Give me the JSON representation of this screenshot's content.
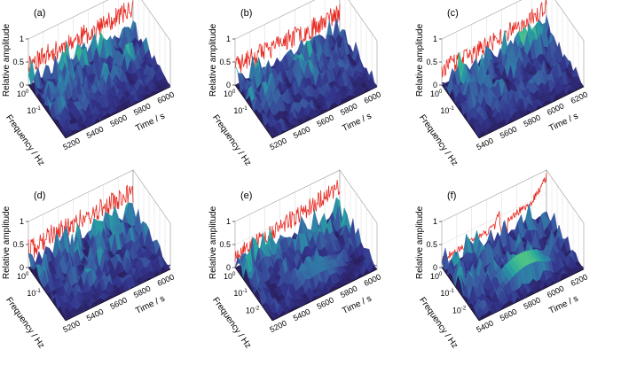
{
  "figure": {
    "panels": [
      {
        "label": "(a)",
        "ylabel": "Relative amplitude",
        "zticks": [
          "0",
          "0.5",
          "1"
        ],
        "freq_label": "Frequency / Hz",
        "freq_ticks": [
          {
            "base": "10",
            "exp": "0"
          },
          {
            "base": "10",
            "exp": "-1"
          }
        ],
        "time_label": "Time / s",
        "time_ticks": [
          "5200",
          "5400",
          "5600",
          "5800",
          "6000"
        ],
        "seed": 11,
        "amp": 0.72,
        "trend": 0.05,
        "noise": 0.22,
        "spike": null,
        "ridge": 0.0
      },
      {
        "label": "(b)",
        "ylabel": "Relative amplitude",
        "zticks": [
          "0",
          "0.5",
          "1"
        ],
        "freq_label": "Frequency / Hz",
        "freq_ticks": [
          {
            "base": "10",
            "exp": "0"
          },
          {
            "base": "10",
            "exp": "-1"
          }
        ],
        "time_label": "Time / s",
        "time_ticks": [
          "5200",
          "5400",
          "5600",
          "5800",
          "6000"
        ],
        "seed": 23,
        "amp": 0.68,
        "trend": 0.12,
        "noise": 0.22,
        "spike": null,
        "ridge": 0.0
      },
      {
        "label": "(c)",
        "ylabel": "Relative amplitude",
        "zticks": [
          "0",
          "0.5",
          "1"
        ],
        "freq_label": "Frequency / Hz",
        "freq_ticks": [
          {
            "base": "10",
            "exp": "0"
          },
          {
            "base": "10",
            "exp": "-1"
          }
        ],
        "time_label": "Time / s",
        "time_ticks": [
          "5400",
          "5600",
          "5800",
          "6000",
          "6200"
        ],
        "seed": 37,
        "amp": 0.6,
        "trend": 0.25,
        "noise": 0.2,
        "spike": null,
        "ridge": 0.0
      },
      {
        "label": "(d)",
        "ylabel": "Relative amplitude",
        "zticks": [
          "0",
          "0.5",
          "1"
        ],
        "freq_label": "Frequency / Hz",
        "freq_ticks": [
          {
            "base": "10",
            "exp": "0"
          },
          {
            "base": "10",
            "exp": "-1"
          }
        ],
        "time_label": "Time / s",
        "time_ticks": [
          "5200",
          "5400",
          "5600",
          "5800",
          "6000"
        ],
        "seed": 41,
        "amp": 0.62,
        "trend": 0.2,
        "noise": 0.24,
        "spike": null,
        "ridge": 0.0
      },
      {
        "label": "(e)",
        "ylabel": "Relative amplitude",
        "zticks": [
          "0",
          "0.5",
          "1"
        ],
        "freq_label": "Frequency / Hz",
        "freq_ticks": [
          {
            "base": "10",
            "exp": "0"
          },
          {
            "base": "10",
            "exp": "-1"
          },
          {
            "base": "10",
            "exp": "-2"
          }
        ],
        "time_label": "Time / s",
        "time_ticks": [
          "5200",
          "5400",
          "5600",
          "5800",
          "6000"
        ],
        "seed": 53,
        "amp": 0.55,
        "trend": 0.35,
        "noise": 0.2,
        "spike": null,
        "ridge": 0.5
      },
      {
        "label": "(f)",
        "ylabel": "Relative amplitude",
        "zticks": [
          "0",
          "0.5",
          "1"
        ],
        "freq_label": "Frequency / Hz",
        "freq_ticks": [
          {
            "base": "10",
            "exp": "0"
          },
          {
            "base": "10",
            "exp": "-1"
          },
          {
            "base": "10",
            "exp": "-2"
          }
        ],
        "time_label": "Time / s",
        "time_ticks": [
          "5400",
          "5600",
          "5800",
          "6000",
          "6200"
        ],
        "seed": 67,
        "amp": 0.45,
        "trend": 0.3,
        "noise": 0.08,
        "spike": 0.55,
        "ridge": 0.9
      }
    ]
  },
  "chart_data": {
    "type": "3d-surface",
    "z_range": [
      0,
      1
    ],
    "line_color": "#e8281f",
    "colormap": [
      "#2a1e5c",
      "#33358c",
      "#3a5aa0",
      "#2f7fa8",
      "#27a5a0",
      "#4dc487",
      "#a8d94a",
      "#f1e51d"
    ],
    "panels": [
      "(a)",
      "(b)",
      "(c)",
      "(d)",
      "(e)",
      "(f)"
    ]
  }
}
